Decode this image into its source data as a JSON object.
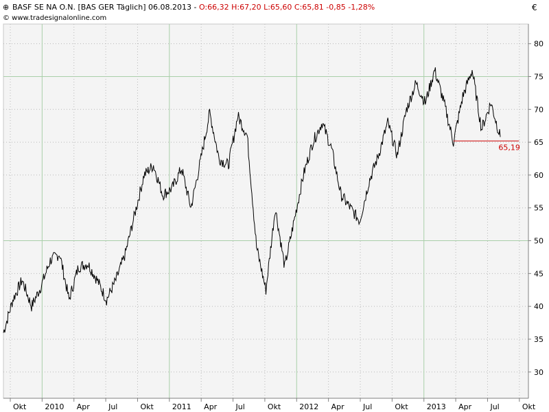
{
  "header": {
    "title_main": "BASF SE NA O.N. [BAS GER  Täglich] 06.08.2013 - ",
    "title_values": "O:66,32 H:67,20 L:65,60 C:65,81 -0,85 -1,28%",
    "copyright": "© www.tradesignalonline.com",
    "currency": "€",
    "title_color": "#000000",
    "value_color": "#cc0000"
  },
  "chart_data": {
    "type": "line",
    "x_labels": [
      "Okt",
      "2010",
      "Apr",
      "Jul",
      "Okt",
      "2011",
      "Apr",
      "Jul",
      "Okt",
      "2012",
      "Apr",
      "Jul",
      "Okt",
      "2013",
      "Apr",
      "Jul",
      "Okt"
    ],
    "ylim": [
      26,
      83
    ],
    "y_ticks": [
      30,
      35,
      40,
      45,
      50,
      55,
      60,
      65,
      70,
      75,
      80
    ],
    "grid_major_y": [
      50,
      75
    ],
    "grid_major_x": [
      "2010",
      "2011",
      "2012",
      "2013"
    ],
    "series_color": "#000000",
    "series": [
      {
        "points": [
          [
            0,
            36
          ],
          [
            1,
            41
          ],
          [
            2,
            44
          ],
          [
            3,
            40
          ],
          [
            4,
            43
          ],
          [
            5,
            47
          ],
          [
            6,
            48
          ],
          [
            7,
            41
          ],
          [
            8,
            46
          ],
          [
            9,
            46.5
          ],
          [
            10,
            44
          ],
          [
            11,
            41
          ],
          [
            12,
            44
          ],
          [
            13,
            48
          ],
          [
            14,
            54
          ],
          [
            15,
            60
          ],
          [
            16,
            61.5
          ],
          [
            17,
            57
          ],
          [
            18,
            58
          ],
          [
            19,
            61
          ],
          [
            20,
            55
          ],
          [
            21,
            62
          ],
          [
            22,
            69.5
          ],
          [
            23,
            62.5
          ],
          [
            24,
            61.5
          ],
          [
            25,
            69
          ],
          [
            26,
            66
          ],
          [
            27,
            49
          ],
          [
            28,
            42.5
          ],
          [
            29,
            55
          ],
          [
            30,
            46
          ],
          [
            31,
            53
          ],
          [
            32,
            60
          ],
          [
            33,
            65
          ],
          [
            34,
            68
          ],
          [
            35,
            64
          ],
          [
            36,
            57
          ],
          [
            37,
            55
          ],
          [
            38,
            53
          ],
          [
            39,
            59
          ],
          [
            40,
            63
          ],
          [
            41,
            68
          ],
          [
            42,
            63
          ],
          [
            43,
            70
          ],
          [
            44,
            74
          ],
          [
            45,
            71
          ],
          [
            46,
            76
          ],
          [
            47,
            71
          ],
          [
            48,
            65
          ],
          [
            49,
            72
          ],
          [
            50,
            76
          ],
          [
            51,
            67
          ],
          [
            52,
            71
          ],
          [
            53,
            65.8
          ]
        ]
      }
    ],
    "reference_line": {
      "label": "65,19",
      "value": 65.19,
      "x_from": 48,
      "x_to": 55,
      "color": "#cc0000"
    }
  }
}
